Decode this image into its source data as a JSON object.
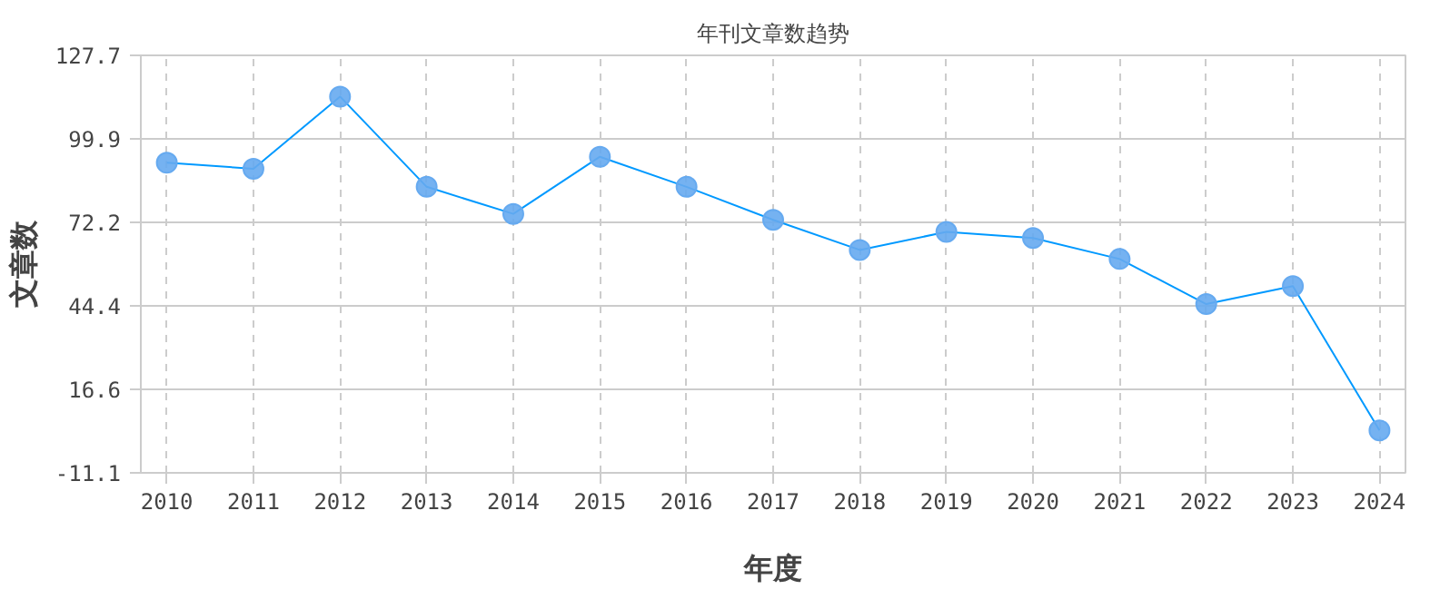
{
  "chart_data": {
    "type": "line",
    "title": "年刊文章数趋势",
    "xlabel": "年度",
    "ylabel": "文章数",
    "categories": [
      "2010",
      "2011",
      "2012",
      "2013",
      "2014",
      "2015",
      "2016",
      "2017",
      "2018",
      "2019",
      "2020",
      "2021",
      "2022",
      "2023",
      "2024"
    ],
    "series": [
      {
        "color": "#0099ff",
        "values": [
          92,
          90,
          114,
          84,
          75,
          94,
          84,
          73,
          63,
          69,
          67,
          60,
          45,
          51,
          3
        ]
      }
    ],
    "ylim": [
      -11.1,
      127.7
    ],
    "yticks": [
      -11.1,
      16.6,
      44.4,
      72.2,
      99.9,
      127.7
    ],
    "grid": true,
    "marker": "circle",
    "line_style": "solid"
  }
}
